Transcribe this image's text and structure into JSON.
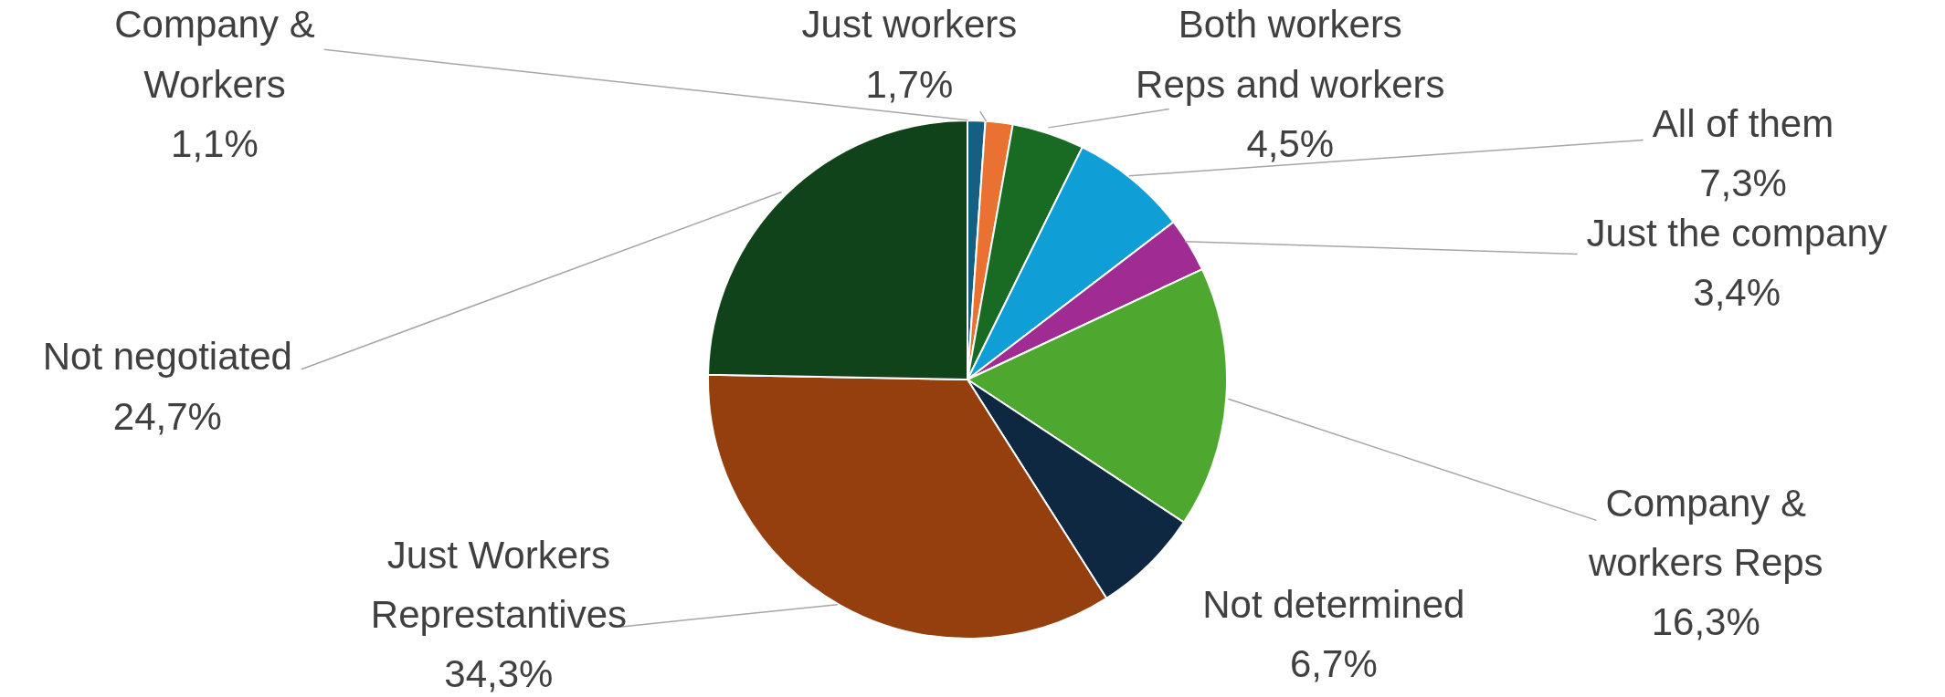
{
  "chart_data": {
    "type": "pie",
    "categories": [
      "Company & Workers",
      "Just workers",
      "Both workers Reps and workers",
      "All of them",
      "Just the company",
      "Company & workers Reps",
      "Not determined",
      "Just Workers Represtantives",
      "Not negotiated"
    ],
    "values": [
      1.1,
      1.7,
      4.5,
      7.3,
      3.4,
      16.3,
      6.7,
      34.3,
      24.7
    ],
    "value_labels": [
      "1,1%",
      "1,7%",
      "4,5%",
      "7,3%",
      "3,4%",
      "16,3%",
      "6,7%",
      "34,3%",
      "24,7%"
    ],
    "colors": [
      "#156082",
      "#e97132",
      "#196b24",
      "#0f9ed5",
      "#a02b93",
      "#4ea72e",
      "#0e2841",
      "#953f0f",
      "#10431a"
    ],
    "legend": false
  }
}
